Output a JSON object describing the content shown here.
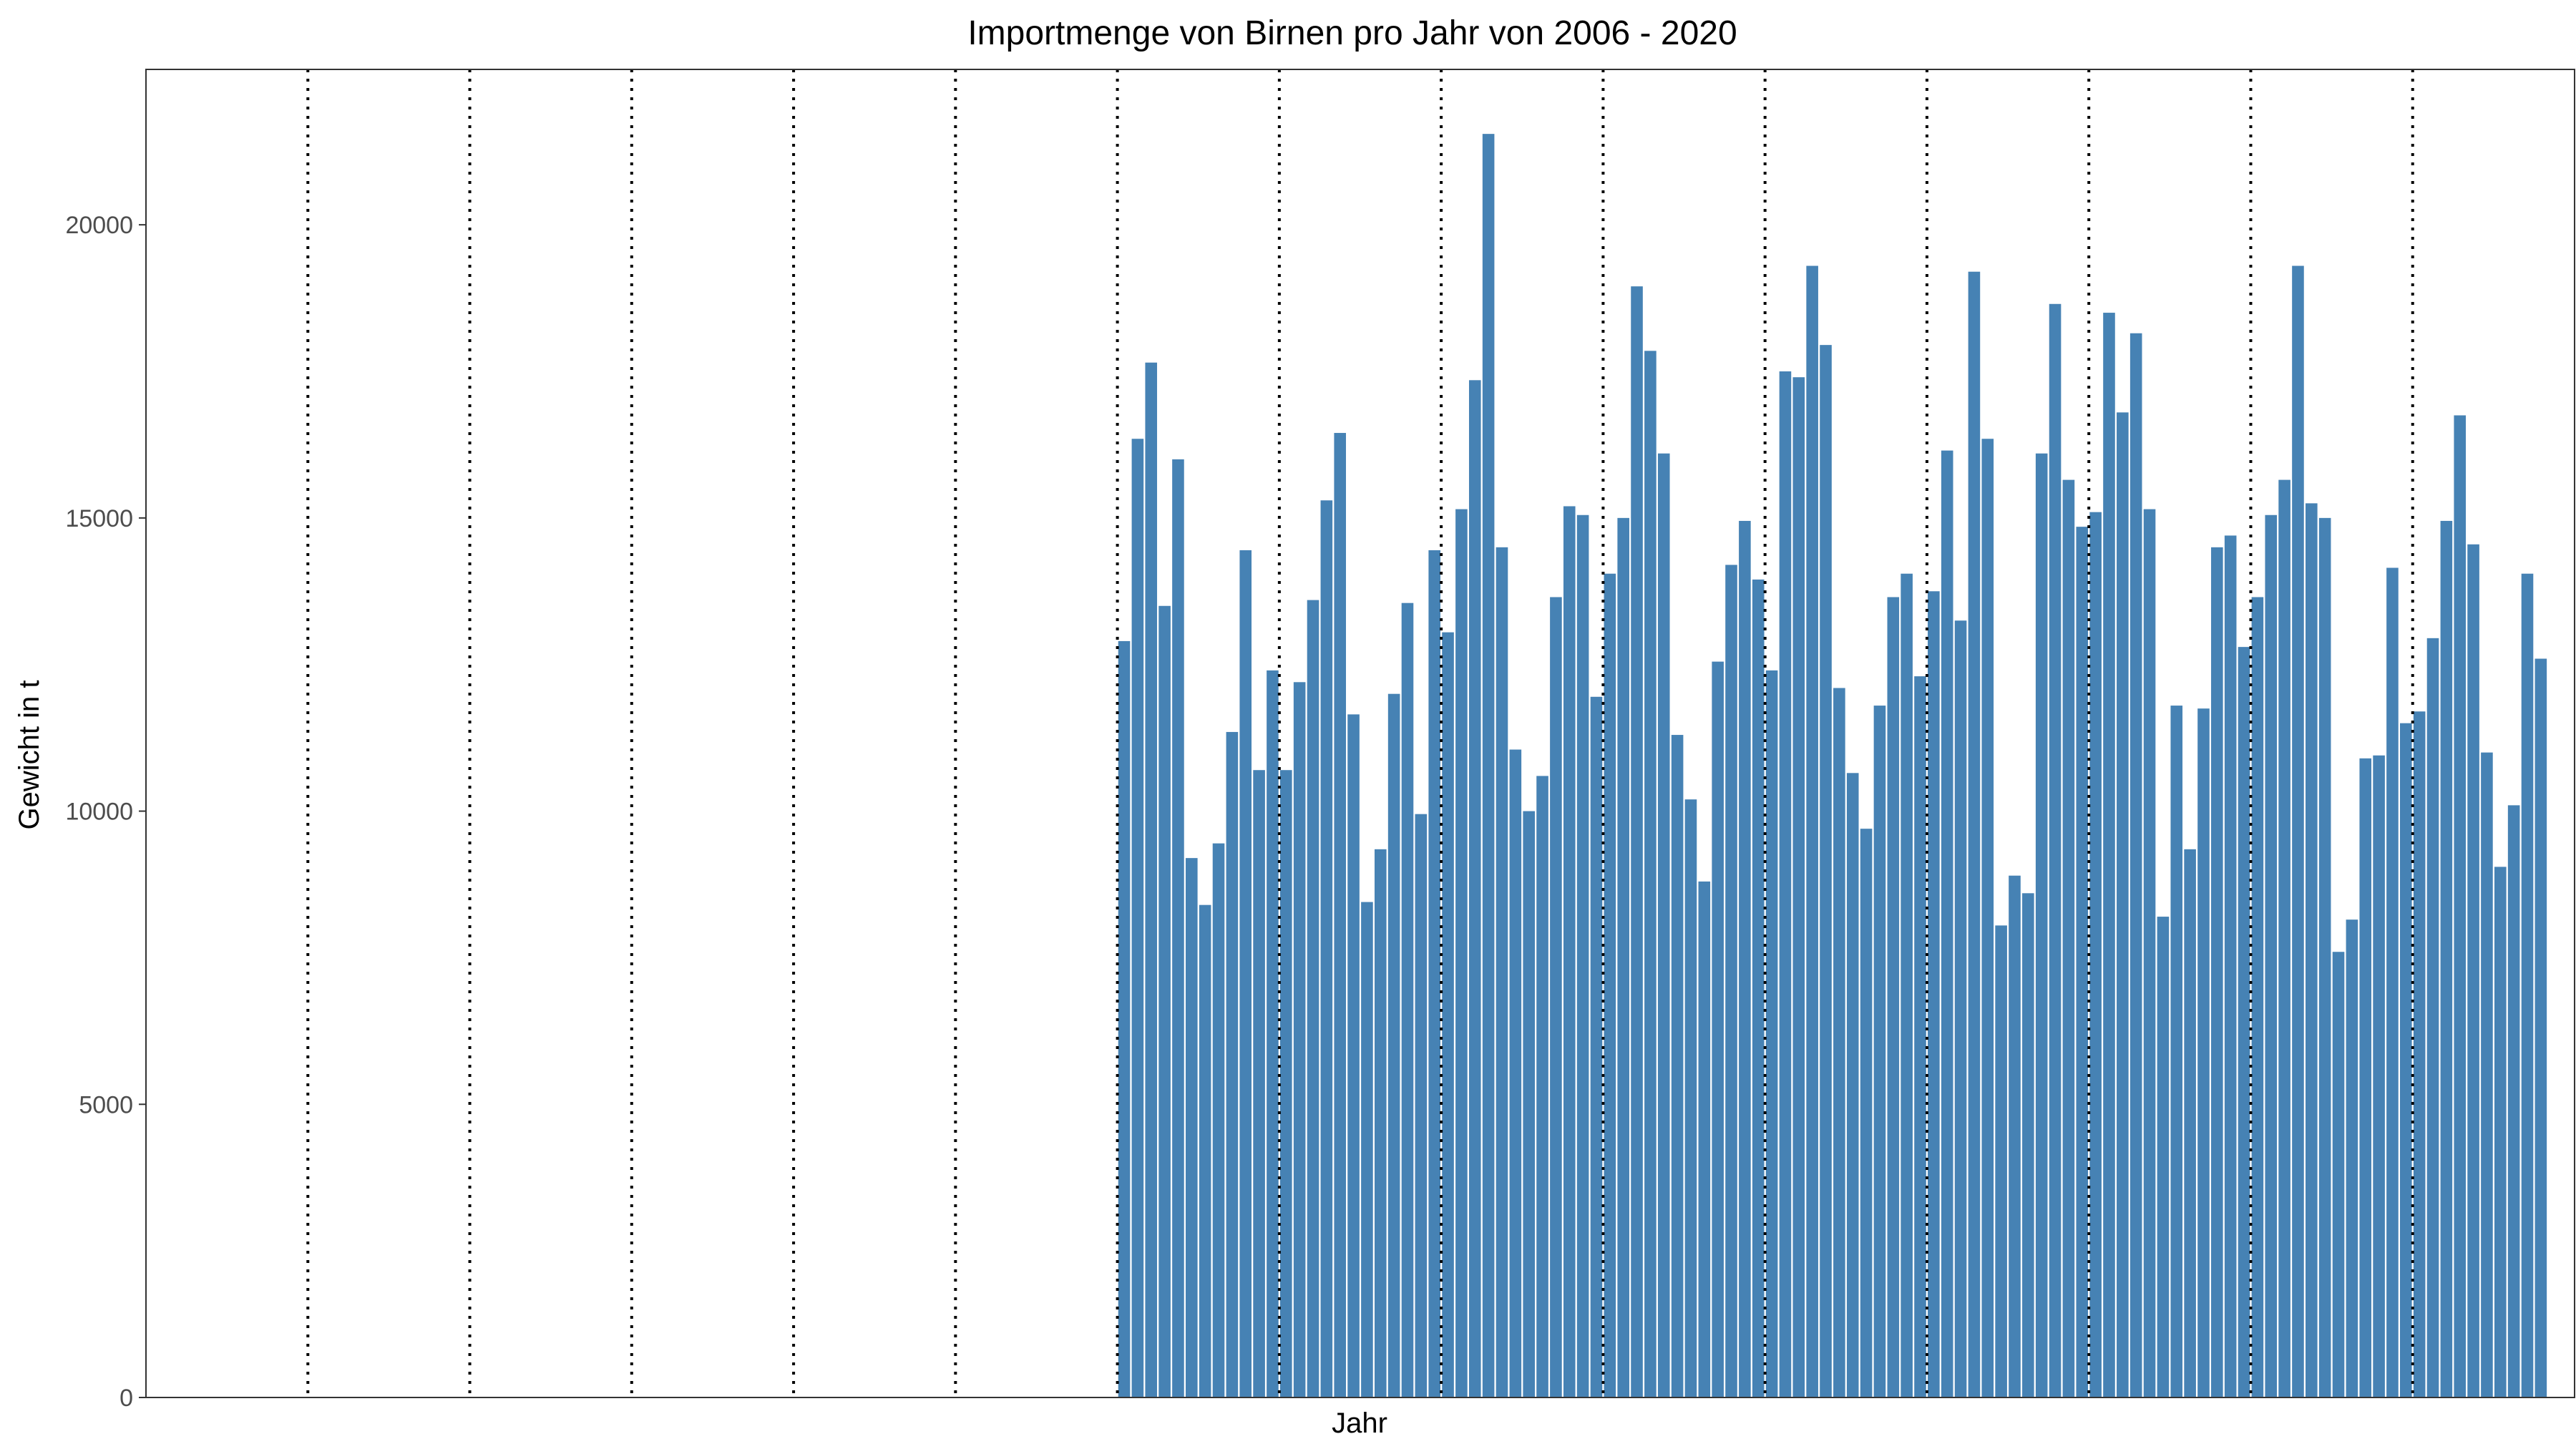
{
  "chart_data": {
    "type": "bar",
    "title": "Importmenge von Birnen pro Jahr von 2006 - 2020",
    "xlabel": "Jahr",
    "ylabel": "Gewicht in t",
    "ylim": [
      0,
      22650
    ],
    "yticks": [
      0,
      5000,
      10000,
      15000,
      20000
    ],
    "year_slots": 15,
    "months_per_year": 12,
    "first_data_slot": 6,
    "grid": false,
    "colors": {
      "bar": "#4682B4",
      "divider": "#000000",
      "axis": "#333333"
    },
    "values": [
      12900,
      16350,
      17650,
      13500,
      16000,
      9200,
      8400,
      9450,
      11350,
      14450,
      10700,
      12400,
      10700,
      12200,
      13600,
      15300,
      16450,
      11650,
      8450,
      9350,
      12000,
      13550,
      9950,
      14450,
      13050,
      15150,
      17350,
      21550,
      14500,
      11050,
      10000,
      10600,
      13650,
      15200,
      15050,
      11950,
      14050,
      15000,
      18950,
      17850,
      16100,
      11300,
      10200,
      8800,
      12550,
      14200,
      14950,
      13950,
      12400,
      17500,
      17400,
      19300,
      17950,
      12100,
      10650,
      9700,
      11800,
      13650,
      14050,
      12300,
      13750,
      16150,
      13250,
      19200,
      16350,
      8050,
      8900,
      8600,
      16100,
      18650,
      15650,
      14850,
      15100,
      18500,
      16800,
      18150,
      15150,
      8200,
      11800,
      9350,
      11750,
      14500,
      14700,
      12800,
      13650,
      15050,
      15650,
      19300,
      15250,
      15000,
      7600,
      8150,
      10900,
      10950,
      14150,
      11500,
      11700,
      12950,
      14950,
      16750,
      14550,
      11000,
      9050,
      10100,
      14050,
      12600
    ]
  }
}
